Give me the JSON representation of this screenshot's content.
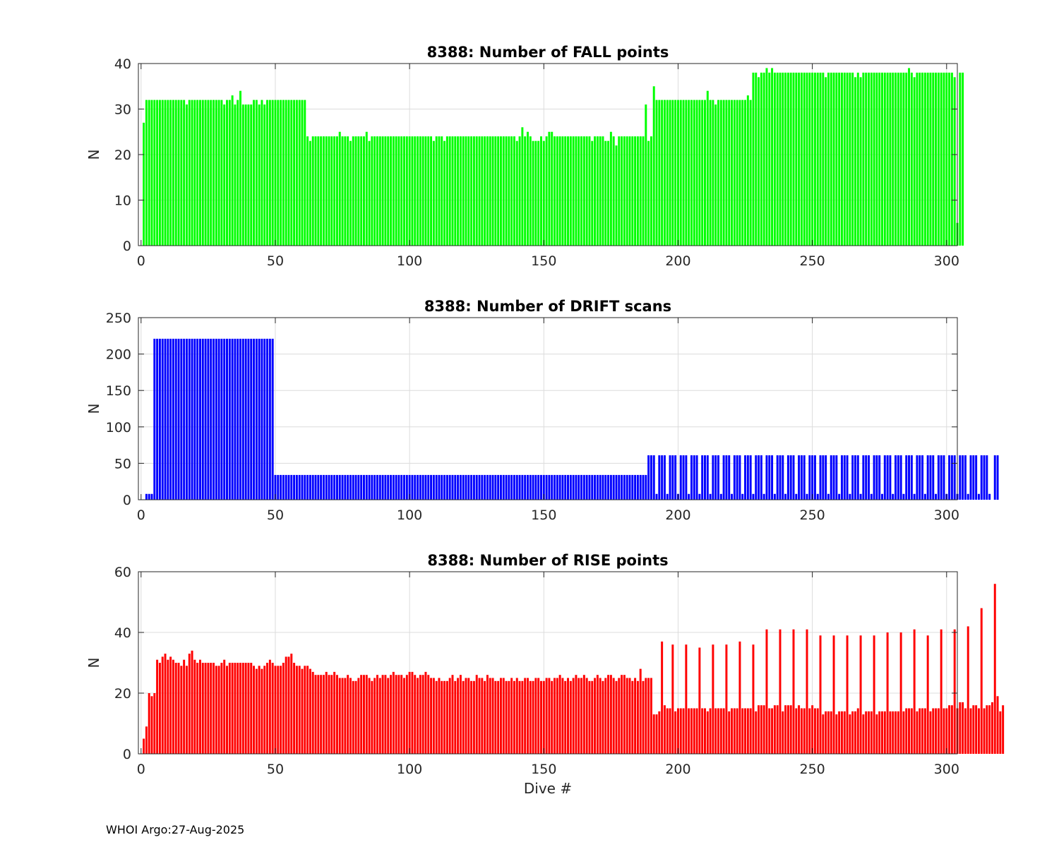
{
  "footer": "WHOI Argo:27-Aug-2025",
  "chart_data": [
    {
      "type": "bar",
      "title": "8388: Number of FALL points",
      "xlabel": "",
      "ylabel": "N",
      "xlim": [
        -1,
        304
      ],
      "ylim": [
        0,
        40
      ],
      "xticks": [
        0,
        50,
        100,
        150,
        200,
        250,
        300
      ],
      "yticks": [
        0,
        10,
        20,
        30,
        40
      ],
      "grid": true,
      "color": "#00ff00",
      "x_start": 1,
      "values": [
        27,
        32,
        32,
        32,
        32,
        32,
        32,
        32,
        32,
        32,
        32,
        32,
        32,
        32,
        32,
        32,
        31,
        32,
        32,
        32,
        32,
        32,
        32,
        32,
        32,
        32,
        32,
        32,
        32,
        32,
        31,
        32,
        32,
        33,
        31,
        32,
        34,
        31,
        31,
        31,
        31,
        32,
        32,
        31,
        32,
        31,
        32,
        32,
        32,
        32,
        32,
        32,
        32,
        32,
        32,
        32,
        32,
        32,
        32,
        32,
        32,
        24,
        23,
        24,
        24,
        24,
        24,
        24,
        24,
        24,
        24,
        24,
        24,
        25,
        24,
        24,
        24,
        23,
        24,
        24,
        24,
        24,
        24,
        25,
        23,
        24,
        24,
        24,
        24,
        24,
        24,
        24,
        24,
        24,
        24,
        24,
        24,
        24,
        24,
        24,
        24,
        24,
        24,
        24,
        24,
        24,
        24,
        24,
        23,
        24,
        24,
        24,
        23,
        24,
        24,
        24,
        24,
        24,
        24,
        24,
        24,
        24,
        24,
        24,
        24,
        24,
        24,
        24,
        24,
        24,
        24,
        24,
        24,
        24,
        24,
        24,
        24,
        24,
        24,
        23,
        24,
        26,
        24,
        25,
        24,
        23,
        23,
        23,
        24,
        23,
        24,
        25,
        25,
        24,
        24,
        24,
        24,
        24,
        24,
        24,
        24,
        24,
        24,
        24,
        24,
        24,
        24,
        23,
        24,
        24,
        24,
        24,
        23,
        23,
        25,
        24,
        22,
        24,
        24,
        24,
        24,
        24,
        24,
        24,
        24,
        24,
        24,
        31,
        23,
        24,
        35,
        32,
        32,
        32,
        32,
        32,
        32,
        32,
        32,
        32,
        32,
        32,
        32,
        32,
        32,
        32,
        32,
        32,
        32,
        32,
        34,
        32,
        32,
        31,
        32,
        32,
        32,
        32,
        32,
        32,
        32,
        32,
        32,
        32,
        32,
        33,
        32,
        38,
        38,
        37,
        38,
        38,
        39,
        38,
        39,
        38,
        38,
        38,
        38,
        38,
        38,
        38,
        38,
        38,
        38,
        38,
        38,
        38,
        38,
        38,
        38,
        38,
        38,
        38,
        37,
        38,
        38,
        38,
        38,
        38,
        38,
        38,
        38,
        38,
        38,
        37,
        38,
        37,
        38,
        38,
        38,
        38,
        38,
        38,
        38,
        38,
        38,
        38,
        38,
        38,
        38,
        38,
        38,
        38,
        38,
        39,
        38,
        37,
        38,
        38,
        38,
        38,
        38,
        38,
        38,
        38,
        38,
        38,
        38,
        38,
        38,
        38,
        37,
        5,
        38,
        38
      ]
    },
    {
      "type": "bar",
      "title": "8388: Number of DRIFT scans",
      "xlabel": "",
      "ylabel": "N",
      "xlim": [
        -1,
        304
      ],
      "ylim": [
        0,
        250
      ],
      "xticks": [
        0,
        50,
        100,
        150,
        200,
        250,
        300
      ],
      "yticks": [
        0,
        50,
        100,
        150,
        200,
        250
      ],
      "grid": true,
      "color": "#0000ff",
      "x_start": 1,
      "values": [
        0,
        8,
        8,
        8,
        221,
        221,
        221,
        221,
        221,
        221,
        221,
        221,
        221,
        221,
        221,
        221,
        221,
        221,
        221,
        221,
        221,
        221,
        221,
        221,
        221,
        221,
        221,
        221,
        221,
        221,
        221,
        221,
        221,
        221,
        221,
        221,
        221,
        221,
        221,
        221,
        221,
        221,
        221,
        221,
        221,
        221,
        221,
        221,
        221,
        34,
        34,
        34,
        34,
        34,
        34,
        34,
        34,
        34,
        34,
        34,
        34,
        34,
        34,
        34,
        34,
        34,
        34,
        34,
        34,
        34,
        34,
        34,
        34,
        34,
        34,
        34,
        34,
        34,
        34,
        34,
        34,
        34,
        34,
        34,
        34,
        34,
        34,
        34,
        34,
        34,
        34,
        34,
        34,
        34,
        34,
        34,
        34,
        34,
        34,
        34,
        34,
        34,
        34,
        34,
        34,
        34,
        34,
        34,
        34,
        34,
        34,
        34,
        34,
        34,
        34,
        34,
        34,
        34,
        34,
        34,
        34,
        34,
        34,
        34,
        34,
        34,
        34,
        34,
        34,
        34,
        34,
        34,
        34,
        34,
        34,
        34,
        34,
        34,
        34,
        34,
        34,
        34,
        34,
        34,
        34,
        34,
        34,
        34,
        34,
        34,
        34,
        34,
        34,
        34,
        34,
        34,
        34,
        34,
        34,
        34,
        34,
        34,
        34,
        34,
        34,
        34,
        34,
        34,
        34,
        34,
        34,
        34,
        34,
        34,
        34,
        34,
        34,
        34,
        34,
        34,
        34,
        34,
        34,
        34,
        34,
        34,
        34,
        34,
        61,
        61,
        61,
        8,
        61,
        61,
        61,
        8,
        61,
        61,
        61,
        8,
        61,
        61,
        61,
        8,
        61,
        61,
        61,
        8,
        61,
        61,
        61,
        8,
        61,
        61,
        61,
        8,
        61,
        61,
        61,
        8,
        61,
        61,
        61,
        8,
        61,
        61,
        61,
        8,
        61,
        61,
        61,
        8,
        61,
        61,
        61,
        8,
        61,
        61,
        61,
        8,
        61,
        61,
        61,
        8,
        61,
        61,
        61,
        8,
        61,
        61,
        61,
        8,
        61,
        61,
        61,
        8,
        61,
        61,
        61,
        8,
        61,
        61,
        61,
        8,
        61,
        61,
        61,
        8,
        61,
        61,
        61,
        8,
        61,
        61,
        61,
        8,
        61,
        61,
        61,
        8,
        61,
        61,
        61,
        8,
        61,
        61,
        61,
        8,
        61,
        61,
        61,
        8,
        61,
        61,
        61,
        8,
        61,
        61,
        61,
        8,
        61,
        61,
        61,
        8,
        61,
        61,
        61,
        8,
        61,
        61,
        61,
        8,
        61,
        61,
        61,
        8,
        0,
        61,
        61
      ]
    },
    {
      "type": "bar",
      "title": "8388: Number of RISE points",
      "xlabel": "Dive #",
      "ylabel": "N",
      "xlim": [
        -1,
        304
      ],
      "ylim": [
        0,
        60
      ],
      "xticks": [
        0,
        50,
        100,
        150,
        200,
        250,
        300
      ],
      "yticks": [
        0,
        20,
        40,
        60
      ],
      "grid": true,
      "color": "#ff0000",
      "x_start": 1,
      "values": [
        5,
        9,
        20,
        19,
        20,
        31,
        30,
        32,
        33,
        31,
        32,
        31,
        30,
        30,
        29,
        31,
        29,
        33,
        34,
        31,
        30,
        31,
        30,
        30,
        30,
        30,
        30,
        29,
        29,
        30,
        31,
        29,
        30,
        30,
        30,
        30,
        30,
        30,
        30,
        30,
        30,
        29,
        28,
        29,
        28,
        29,
        30,
        31,
        30,
        29,
        29,
        29,
        30,
        32,
        32,
        33,
        30,
        29,
        29,
        28,
        29,
        29,
        28,
        27,
        26,
        26,
        26,
        26,
        27,
        26,
        26,
        27,
        26,
        25,
        25,
        25,
        26,
        25,
        24,
        24,
        25,
        26,
        26,
        26,
        25,
        24,
        25,
        26,
        25,
        26,
        26,
        25,
        26,
        27,
        26,
        26,
        26,
        25,
        26,
        27,
        27,
        26,
        25,
        26,
        26,
        27,
        26,
        25,
        25,
        24,
        25,
        24,
        24,
        24,
        25,
        26,
        24,
        25,
        26,
        24,
        25,
        25,
        24,
        24,
        26,
        25,
        25,
        24,
        26,
        25,
        25,
        24,
        24,
        25,
        25,
        24,
        24,
        25,
        24,
        25,
        24,
        24,
        25,
        25,
        24,
        24,
        25,
        25,
        24,
        24,
        25,
        25,
        24,
        25,
        25,
        26,
        25,
        24,
        25,
        24,
        25,
        26,
        25,
        25,
        26,
        25,
        24,
        24,
        25,
        26,
        25,
        24,
        25,
        26,
        26,
        25,
        24,
        25,
        26,
        26,
        25,
        25,
        24,
        25,
        24,
        28,
        24,
        25,
        25,
        25,
        13,
        13,
        14,
        37,
        16,
        15,
        15,
        36,
        14,
        15,
        15,
        15,
        36,
        15,
        15,
        15,
        15,
        35,
        15,
        15,
        14,
        15,
        36,
        15,
        15,
        15,
        15,
        36,
        14,
        15,
        15,
        15,
        37,
        15,
        15,
        15,
        15,
        36,
        14,
        16,
        16,
        16,
        41,
        15,
        15,
        16,
        16,
        41,
        14,
        16,
        16,
        16,
        41,
        15,
        16,
        15,
        15,
        41,
        15,
        16,
        15,
        15,
        39,
        13,
        14,
        14,
        14,
        39,
        13,
        14,
        14,
        14,
        39,
        13,
        14,
        14,
        15,
        39,
        13,
        14,
        14,
        14,
        39,
        13,
        14,
        14,
        14,
        40,
        14,
        14,
        14,
        14,
        40,
        14,
        15,
        15,
        15,
        41,
        14,
        15,
        15,
        15,
        39,
        14,
        15,
        15,
        15,
        41,
        15,
        15,
        16,
        16,
        41,
        15,
        17,
        17,
        15,
        42,
        15,
        16,
        16,
        15,
        48,
        15,
        16,
        16,
        17,
        56,
        19,
        14,
        16
      ]
    }
  ]
}
